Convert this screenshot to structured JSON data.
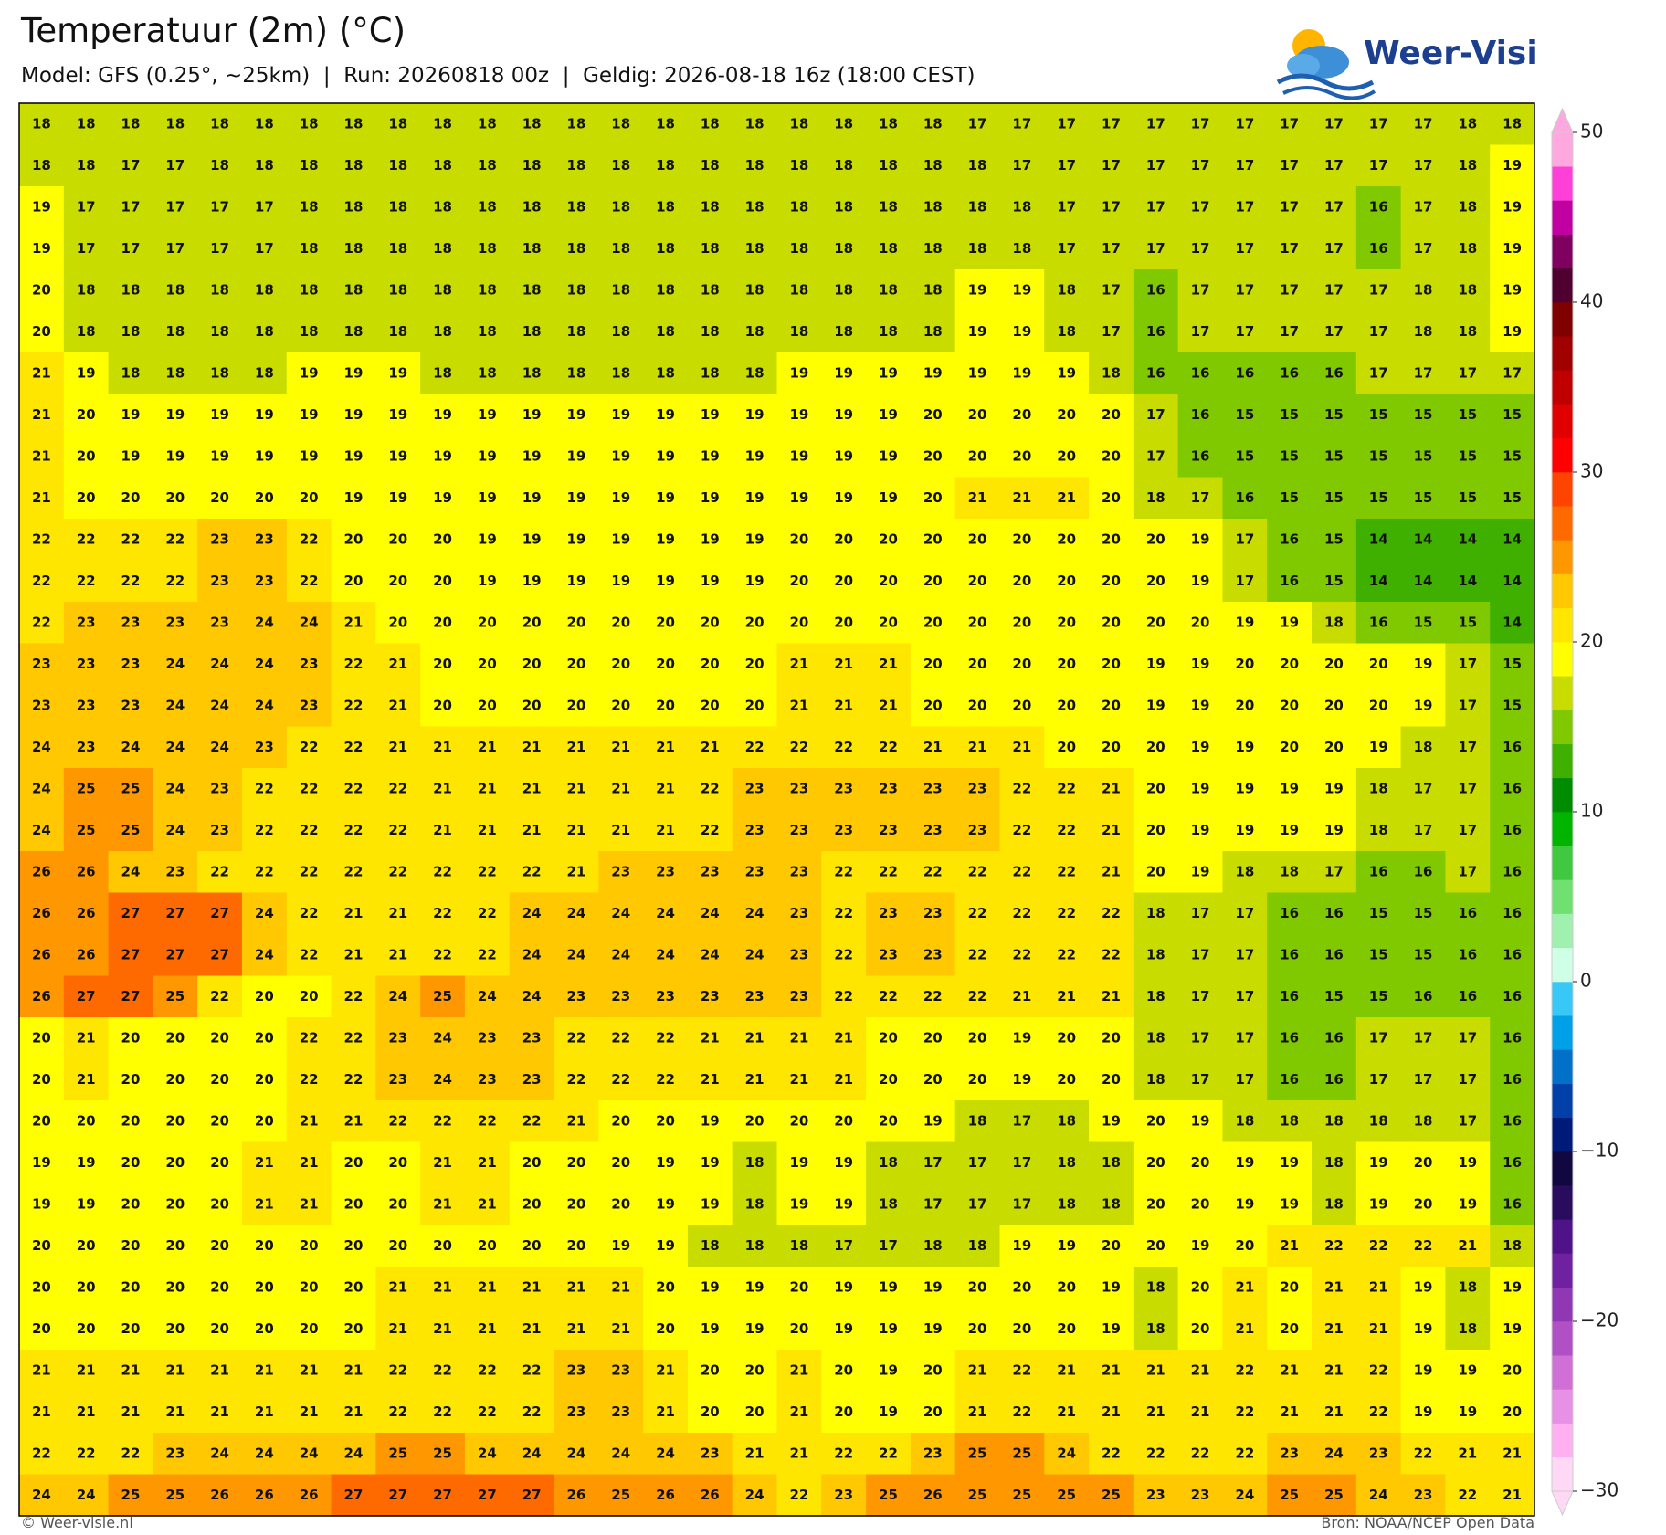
{
  "header": {
    "title": "Temperatuur (2m) (°C)",
    "subtitle": "Model: GFS (0.25°, ~25km)  |  Run: 20260818 00z  |  Geldig: 2026-08-18 16z (18:00 CEST)",
    "logo": "Weer-Visie"
  },
  "grid": {
    "values": [
      [
        18,
        18,
        18,
        18,
        18,
        18,
        18,
        18,
        18,
        18,
        18,
        18,
        18,
        18,
        18,
        18,
        18,
        18,
        18,
        18,
        18,
        17,
        17,
        17,
        17,
        17,
        17,
        17,
        17,
        17,
        17,
        17,
        18,
        18
      ],
      [
        18,
        18,
        17,
        17,
        18,
        18,
        18,
        18,
        18,
        18,
        18,
        18,
        18,
        18,
        18,
        18,
        18,
        18,
        18,
        18,
        18,
        18,
        17,
        17,
        17,
        17,
        17,
        17,
        17,
        17,
        17,
        17,
        18,
        19
      ],
      [
        19,
        17,
        17,
        17,
        17,
        17,
        18,
        18,
        18,
        18,
        18,
        18,
        18,
        18,
        18,
        18,
        18,
        18,
        18,
        18,
        18,
        18,
        18,
        17,
        17,
        17,
        17,
        17,
        17,
        17,
        16,
        17,
        18,
        19
      ],
      [
        19,
        17,
        17,
        17,
        17,
        17,
        18,
        18,
        18,
        18,
        18,
        18,
        18,
        18,
        18,
        18,
        18,
        18,
        18,
        18,
        18,
        18,
        18,
        17,
        17,
        17,
        17,
        17,
        17,
        17,
        16,
        17,
        18,
        19
      ],
      [
        20,
        18,
        18,
        18,
        18,
        18,
        18,
        18,
        18,
        18,
        18,
        18,
        18,
        18,
        18,
        18,
        18,
        18,
        18,
        18,
        18,
        19,
        19,
        18,
        17,
        16,
        17,
        17,
        17,
        17,
        17,
        18,
        18,
        19
      ],
      [
        20,
        18,
        18,
        18,
        18,
        18,
        18,
        18,
        18,
        18,
        18,
        18,
        18,
        18,
        18,
        18,
        18,
        18,
        18,
        18,
        18,
        19,
        19,
        18,
        17,
        16,
        17,
        17,
        17,
        17,
        17,
        18,
        18,
        19
      ],
      [
        21,
        19,
        18,
        18,
        18,
        18,
        19,
        19,
        19,
        18,
        18,
        18,
        18,
        18,
        18,
        18,
        18,
        19,
        19,
        19,
        19,
        19,
        19,
        19,
        18,
        16,
        16,
        16,
        16,
        16,
        17,
        17,
        17,
        17
      ],
      [
        21,
        20,
        19,
        19,
        19,
        19,
        19,
        19,
        19,
        19,
        19,
        19,
        19,
        19,
        19,
        19,
        19,
        19,
        19,
        19,
        20,
        20,
        20,
        20,
        20,
        17,
        16,
        15,
        15,
        15,
        15,
        15,
        15,
        15
      ],
      [
        21,
        20,
        19,
        19,
        19,
        19,
        19,
        19,
        19,
        19,
        19,
        19,
        19,
        19,
        19,
        19,
        19,
        19,
        19,
        19,
        20,
        20,
        20,
        20,
        20,
        17,
        16,
        15,
        15,
        15,
        15,
        15,
        15,
        15
      ],
      [
        21,
        20,
        20,
        20,
        20,
        20,
        20,
        19,
        19,
        19,
        19,
        19,
        19,
        19,
        19,
        19,
        19,
        19,
        19,
        19,
        20,
        21,
        21,
        21,
        20,
        18,
        17,
        16,
        15,
        15,
        15,
        15,
        15,
        15
      ],
      [
        22,
        22,
        22,
        22,
        23,
        23,
        22,
        20,
        20,
        20,
        19,
        19,
        19,
        19,
        19,
        19,
        19,
        20,
        20,
        20,
        20,
        20,
        20,
        20,
        20,
        20,
        19,
        17,
        16,
        15,
        14,
        14,
        14,
        14
      ],
      [
        22,
        22,
        22,
        22,
        23,
        23,
        22,
        20,
        20,
        20,
        19,
        19,
        19,
        19,
        19,
        19,
        19,
        20,
        20,
        20,
        20,
        20,
        20,
        20,
        20,
        20,
        19,
        17,
        16,
        15,
        14,
        14,
        14,
        14
      ],
      [
        22,
        23,
        23,
        23,
        23,
        24,
        24,
        21,
        20,
        20,
        20,
        20,
        20,
        20,
        20,
        20,
        20,
        20,
        20,
        20,
        20,
        20,
        20,
        20,
        20,
        20,
        20,
        19,
        19,
        18,
        16,
        15,
        15,
        14
      ],
      [
        23,
        23,
        23,
        24,
        24,
        24,
        23,
        22,
        21,
        20,
        20,
        20,
        20,
        20,
        20,
        20,
        20,
        21,
        21,
        21,
        20,
        20,
        20,
        20,
        20,
        19,
        19,
        20,
        20,
        20,
        20,
        19,
        17,
        15
      ],
      [
        23,
        23,
        23,
        24,
        24,
        24,
        23,
        22,
        21,
        20,
        20,
        20,
        20,
        20,
        20,
        20,
        20,
        21,
        21,
        21,
        20,
        20,
        20,
        20,
        20,
        19,
        19,
        20,
        20,
        20,
        20,
        19,
        17,
        15
      ],
      [
        24,
        23,
        24,
        24,
        24,
        23,
        22,
        22,
        21,
        21,
        21,
        21,
        21,
        21,
        21,
        21,
        22,
        22,
        22,
        22,
        21,
        21,
        21,
        20,
        20,
        20,
        19,
        19,
        20,
        20,
        19,
        18,
        17,
        16
      ],
      [
        24,
        25,
        25,
        24,
        23,
        22,
        22,
        22,
        22,
        21,
        21,
        21,
        21,
        21,
        21,
        22,
        23,
        23,
        23,
        23,
        23,
        23,
        22,
        22,
        21,
        20,
        19,
        19,
        19,
        19,
        18,
        17,
        17,
        16
      ],
      [
        24,
        25,
        25,
        24,
        23,
        22,
        22,
        22,
        22,
        21,
        21,
        21,
        21,
        21,
        21,
        22,
        23,
        23,
        23,
        23,
        23,
        23,
        22,
        22,
        21,
        20,
        19,
        19,
        19,
        19,
        18,
        17,
        17,
        16
      ],
      [
        26,
        26,
        24,
        23,
        22,
        22,
        22,
        22,
        22,
        22,
        22,
        22,
        21,
        23,
        23,
        23,
        23,
        23,
        22,
        22,
        22,
        22,
        22,
        22,
        21,
        20,
        19,
        18,
        18,
        17,
        16,
        16,
        17,
        16
      ],
      [
        26,
        26,
        27,
        27,
        27,
        24,
        22,
        21,
        21,
        22,
        22,
        24,
        24,
        24,
        24,
        24,
        24,
        23,
        22,
        23,
        23,
        22,
        22,
        22,
        22,
        18,
        17,
        17,
        16,
        16,
        15,
        15,
        16,
        16
      ],
      [
        26,
        26,
        27,
        27,
        27,
        24,
        22,
        21,
        21,
        22,
        22,
        24,
        24,
        24,
        24,
        24,
        24,
        23,
        22,
        23,
        23,
        22,
        22,
        22,
        22,
        18,
        17,
        17,
        16,
        16,
        15,
        15,
        16,
        16
      ],
      [
        26,
        27,
        27,
        25,
        22,
        20,
        20,
        22,
        24,
        25,
        24,
        24,
        23,
        23,
        23,
        23,
        23,
        23,
        22,
        22,
        22,
        22,
        21,
        21,
        21,
        18,
        17,
        17,
        16,
        15,
        15,
        16,
        16,
        16
      ],
      [
        20,
        21,
        20,
        20,
        20,
        20,
        22,
        22,
        23,
        24,
        23,
        23,
        22,
        22,
        22,
        21,
        21,
        21,
        21,
        20,
        20,
        20,
        19,
        20,
        20,
        18,
        17,
        17,
        16,
        16,
        17,
        17,
        17,
        16
      ],
      [
        20,
        21,
        20,
        20,
        20,
        20,
        22,
        22,
        23,
        24,
        23,
        23,
        22,
        22,
        22,
        21,
        21,
        21,
        21,
        20,
        20,
        20,
        19,
        20,
        20,
        18,
        17,
        17,
        16,
        16,
        17,
        17,
        17,
        16
      ],
      [
        20,
        20,
        20,
        20,
        20,
        20,
        21,
        21,
        22,
        22,
        22,
        22,
        21,
        20,
        20,
        19,
        20,
        20,
        20,
        20,
        19,
        18,
        17,
        18,
        19,
        20,
        19,
        18,
        18,
        18,
        18,
        18,
        17,
        16
      ],
      [
        19,
        19,
        20,
        20,
        20,
        21,
        21,
        20,
        20,
        21,
        21,
        20,
        20,
        20,
        19,
        19,
        18,
        19,
        19,
        18,
        17,
        17,
        17,
        18,
        18,
        20,
        20,
        19,
        19,
        18,
        19,
        20,
        19,
        16
      ],
      [
        19,
        19,
        20,
        20,
        20,
        21,
        21,
        20,
        20,
        21,
        21,
        20,
        20,
        20,
        19,
        19,
        18,
        19,
        19,
        18,
        17,
        17,
        17,
        18,
        18,
        20,
        20,
        19,
        19,
        18,
        19,
        20,
        19,
        16
      ],
      [
        20,
        20,
        20,
        20,
        20,
        20,
        20,
        20,
        20,
        20,
        20,
        20,
        20,
        19,
        19,
        18,
        18,
        18,
        17,
        17,
        18,
        18,
        19,
        19,
        20,
        20,
        19,
        20,
        21,
        22,
        22,
        22,
        21,
        18
      ],
      [
        20,
        20,
        20,
        20,
        20,
        20,
        20,
        20,
        21,
        21,
        21,
        21,
        21,
        21,
        20,
        19,
        19,
        20,
        19,
        19,
        19,
        20,
        20,
        20,
        19,
        18,
        20,
        21,
        20,
        21,
        21,
        19,
        18,
        19
      ],
      [
        20,
        20,
        20,
        20,
        20,
        20,
        20,
        20,
        21,
        21,
        21,
        21,
        21,
        21,
        20,
        19,
        19,
        20,
        19,
        19,
        19,
        20,
        20,
        20,
        19,
        18,
        20,
        21,
        20,
        21,
        21,
        19,
        18,
        19
      ],
      [
        21,
        21,
        21,
        21,
        21,
        21,
        21,
        21,
        22,
        22,
        22,
        22,
        23,
        23,
        21,
        20,
        20,
        21,
        20,
        19,
        20,
        21,
        22,
        21,
        21,
        21,
        21,
        22,
        21,
        21,
        22,
        19,
        19,
        20
      ],
      [
        21,
        21,
        21,
        21,
        21,
        21,
        21,
        21,
        22,
        22,
        22,
        22,
        23,
        23,
        21,
        20,
        20,
        21,
        20,
        19,
        20,
        21,
        22,
        21,
        21,
        21,
        21,
        22,
        21,
        21,
        22,
        19,
        19,
        20
      ],
      [
        22,
        22,
        22,
        23,
        24,
        24,
        24,
        24,
        25,
        25,
        24,
        24,
        24,
        24,
        24,
        23,
        21,
        21,
        22,
        22,
        23,
        25,
        25,
        24,
        22,
        22,
        22,
        22,
        23,
        24,
        23,
        22,
        21,
        21
      ],
      [
        24,
        24,
        25,
        25,
        26,
        26,
        26,
        27,
        27,
        27,
        27,
        27,
        26,
        25,
        26,
        26,
        24,
        22,
        23,
        25,
        26,
        25,
        25,
        25,
        25,
        23,
        23,
        24,
        25,
        25,
        24,
        23,
        22,
        21
      ]
    ]
  },
  "colorbar": {
    "lim": [
      -30,
      50
    ],
    "ticks": [
      50,
      40,
      30,
      20,
      10,
      0,
      {
        "value": -10,
        "label": "−10"
      },
      {
        "value": -20,
        "label": "−20"
      },
      {
        "value": -30,
        "label": "−30"
      }
    ],
    "colors": [
      "#ffd8f6",
      "#ffb0f0",
      "#e890e6",
      "#d070d6",
      "#b050c4",
      "#9038b4",
      "#6e22a0",
      "#501288",
      "#2a0c5e",
      "#120840",
      "#001a7a",
      "#0040a8",
      "#0070c8",
      "#00a0e8",
      "#38c8f8",
      "#d0ffe8",
      "#a0f0b0",
      "#70e070",
      "#40c840",
      "#00b400",
      "#008c00",
      "#40b000",
      "#80c800",
      "#c8dc00",
      "#ffff00",
      "#ffe600",
      "#ffc800",
      "#ff9800",
      "#ff6a00",
      "#ff4400",
      "#ff0000",
      "#e00000",
      "#c00000",
      "#a00000",
      "#800000",
      "#500030",
      "#800060",
      "#c000a0",
      "#ff40d8",
      "#ffa8e0"
    ]
  },
  "footer": {
    "left": "© Weer-visie.nl",
    "right": "Bron: NOAA/NCEP Open Data"
  }
}
